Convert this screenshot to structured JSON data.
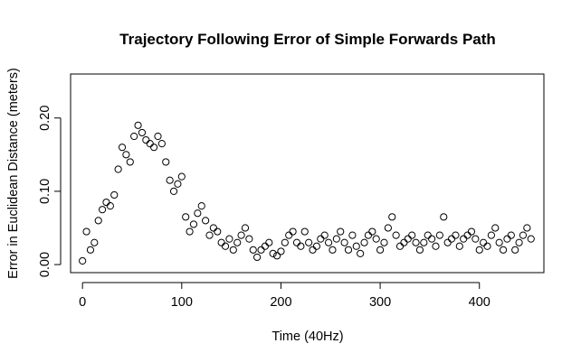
{
  "chart_data": {
    "type": "scatter",
    "title": "Trajectory Following Error of Simple Forwards Path",
    "xlabel": "Time (40Hz)",
    "ylabel": "Error in Euclidean Distance (meters)",
    "xlim": [
      -12,
      465
    ],
    "ylim": [
      -0.011,
      0.26
    ],
    "x_ticks": [
      0,
      100,
      200,
      300,
      400
    ],
    "x_tick_labels": [
      "0",
      "100",
      "200",
      "300",
      "400"
    ],
    "y_ticks": [
      0.0,
      0.1,
      0.2
    ],
    "y_tick_labels": [
      "0.00",
      "0.10",
      "0.20"
    ],
    "grid": false,
    "legend": "none",
    "marker": "open-circle",
    "series": [
      {
        "x": [
          0,
          4,
          8,
          12,
          16,
          20,
          24,
          28,
          32,
          36,
          40,
          44,
          48,
          52,
          56,
          60,
          64,
          68,
          72,
          76,
          80,
          84,
          88,
          92,
          96,
          100,
          104,
          108,
          112,
          116,
          120,
          124,
          128,
          132,
          136,
          140,
          144,
          148,
          152,
          156,
          160,
          164,
          168,
          172,
          176,
          180,
          184,
          188,
          192,
          196,
          200,
          204,
          208,
          212,
          216,
          220,
          224,
          228,
          232,
          236,
          240,
          244,
          248,
          252,
          256,
          260,
          264,
          268,
          272,
          276,
          280,
          284,
          288,
          292,
          296,
          300,
          304,
          308,
          312,
          316,
          320,
          324,
          328,
          332,
          336,
          340,
          344,
          348,
          352,
          356,
          360,
          364,
          368,
          372,
          376,
          380,
          384,
          388,
          392,
          396,
          400,
          404,
          408,
          412,
          416,
          420,
          424,
          428,
          432,
          436,
          440,
          444,
          448,
          452
        ],
        "y": [
          0.005,
          0.045,
          0.02,
          0.03,
          0.06,
          0.075,
          0.085,
          0.08,
          0.095,
          0.13,
          0.16,
          0.15,
          0.14,
          0.175,
          0.19,
          0.18,
          0.17,
          0.165,
          0.16,
          0.175,
          0.165,
          0.14,
          0.115,
          0.1,
          0.11,
          0.12,
          0.065,
          0.045,
          0.055,
          0.07,
          0.08,
          0.06,
          0.04,
          0.05,
          0.045,
          0.03,
          0.025,
          0.035,
          0.02,
          0.03,
          0.04,
          0.05,
          0.035,
          0.02,
          0.01,
          0.02,
          0.025,
          0.03,
          0.015,
          0.012,
          0.018,
          0.03,
          0.04,
          0.045,
          0.03,
          0.025,
          0.045,
          0.03,
          0.02,
          0.025,
          0.035,
          0.04,
          0.03,
          0.02,
          0.035,
          0.045,
          0.03,
          0.02,
          0.04,
          0.025,
          0.015,
          0.03,
          0.04,
          0.045,
          0.035,
          0.02,
          0.03,
          0.05,
          0.065,
          0.04,
          0.025,
          0.03,
          0.035,
          0.04,
          0.03,
          0.02,
          0.03,
          0.04,
          0.035,
          0.025,
          0.04,
          0.065,
          0.03,
          0.035,
          0.04,
          0.025,
          0.035,
          0.04,
          0.045,
          0.035,
          0.02,
          0.03,
          0.025,
          0.04,
          0.05,
          0.03,
          0.02,
          0.035,
          0.04,
          0.02,
          0.03,
          0.04,
          0.05,
          0.035
        ]
      }
    ]
  }
}
